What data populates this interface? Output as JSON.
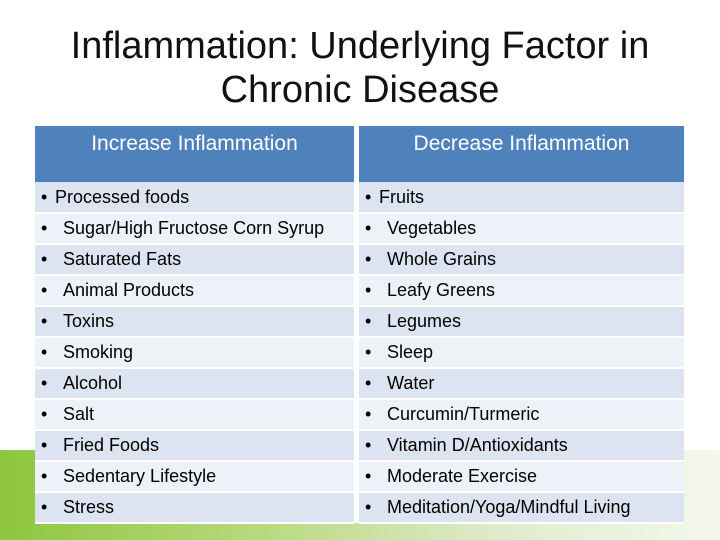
{
  "title": {
    "line1": "Inflammation:  Underlying Factor in",
    "line2": "Chronic Disease"
  },
  "table": {
    "headers": [
      "Increase Inflammation",
      "Decrease Inflammation"
    ],
    "bullet": "•",
    "increase": [
      "Processed foods",
      "Sugar/High Fructose Corn Syrup",
      "Saturated Fats",
      "Animal Products",
      "Toxins",
      "Smoking",
      "Alcohol",
      "Salt",
      "Fried Foods",
      "Sedentary Lifestyle",
      "Stress"
    ],
    "decrease": [
      "Fruits",
      "Vegetables",
      "Whole Grains",
      "Leafy Greens",
      "Legumes",
      "Sleep",
      "Water",
      "Curcumin/Turmeric",
      "Vitamin D/Antioxidants",
      "Moderate Exercise",
      "Meditation/Yoga/Mindful Living"
    ]
  },
  "colors": {
    "header_blue": "#4f81bd",
    "row_dark": "#dbe4f0",
    "row_light": "#eef2f8",
    "accent_green": "#8dc63f"
  }
}
